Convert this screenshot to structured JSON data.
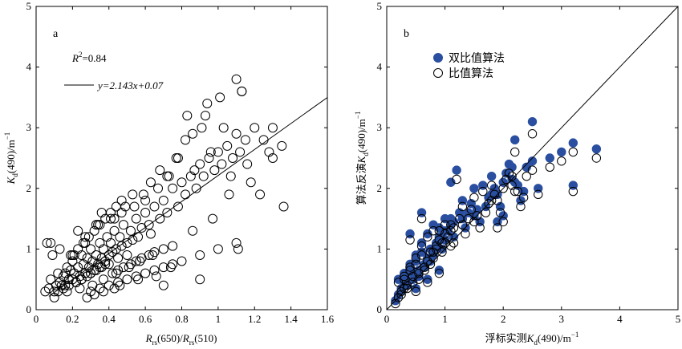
{
  "chart_data": [
    {
      "panel_label": "a",
      "type": "scatter",
      "xlabel_main": "R",
      "xlabel_sub": "rs",
      "xlabel_mid": "(650)/",
      "xlabel_main2": "R",
      "xlabel_sub2": "rs",
      "xlabel_tail": "(510)",
      "ylabel_main": "K",
      "ylabel_sub": "d",
      "ylabel_tail": "(490)/m",
      "ylabel_sup": "−1",
      "xlim": [
        0,
        1.6
      ],
      "ylim": [
        0,
        5
      ],
      "xticks": [
        0,
        0.2,
        0.4,
        0.6,
        0.8,
        1.0,
        1.2,
        1.4,
        1.6
      ],
      "xtick_labels": [
        "0",
        "0.2",
        "0.4",
        "0.6",
        "0.8",
        "1",
        "1.2",
        "1.4",
        "1.6"
      ],
      "yticks": [
        0,
        1,
        2,
        3,
        4,
        5
      ],
      "ytick_labels": [
        "0",
        "1",
        "2",
        "3",
        "4",
        "5"
      ],
      "r2_label": "R",
      "r2_sup": "2",
      "r2_value": "=0.84",
      "fit_label": "y=2.143x+0.07",
      "fit": {
        "slope": 2.143,
        "intercept": 0.07,
        "x_range": [
          0.07,
          1.6
        ]
      },
      "marker": "open-circle",
      "x": [
        0.07,
        0.08,
        0.1,
        0.12,
        0.13,
        0.15,
        0.16,
        0.17,
        0.18,
        0.19,
        0.2,
        0.2,
        0.21,
        0.22,
        0.23,
        0.24,
        0.25,
        0.25,
        0.26,
        0.27,
        0.28,
        0.29,
        0.3,
        0.3,
        0.31,
        0.32,
        0.33,
        0.34,
        0.35,
        0.35,
        0.36,
        0.37,
        0.38,
        0.39,
        0.4,
        0.4,
        0.41,
        0.42,
        0.43,
        0.44,
        0.45,
        0.46,
        0.47,
        0.48,
        0.5,
        0.5,
        0.52,
        0.53,
        0.55,
        0.56,
        0.58,
        0.6,
        0.62,
        0.63,
        0.65,
        0.68,
        0.7,
        0.72,
        0.75,
        0.78,
        0.8,
        0.82,
        0.85,
        0.88,
        0.9,
        0.92,
        0.95,
        0.98,
        1.0,
        1.02,
        1.05,
        1.08,
        1.1,
        1.12,
        1.15,
        1.2,
        1.25,
        1.28,
        1.3,
        1.35,
        0.12,
        0.15,
        0.18,
        0.22,
        0.25,
        0.28,
        0.3,
        0.33,
        0.36,
        0.38,
        0.42,
        0.45,
        0.48,
        0.52,
        0.55,
        0.58,
        0.62,
        0.65,
        0.7,
        0.75,
        0.08,
        0.1,
        0.14,
        0.17,
        0.21,
        0.24,
        0.27,
        0.31,
        0.34,
        0.37,
        0.41,
        0.44,
        0.47,
        0.51,
        0.54,
        0.57,
        0.6,
        0.64,
        0.67,
        0.72,
        0.77,
        0.82,
        0.86,
        0.93,
        0.97,
        1.03,
        1.07,
        1.13,
        1.18,
        1.23,
        0.2,
        0.23,
        0.26,
        0.29,
        0.32,
        0.35,
        0.38,
        0.41,
        0.44,
        0.47,
        0.3,
        0.35,
        0.4,
        0.45,
        0.5,
        0.55,
        0.6,
        0.65,
        0.7,
        0.75,
        0.8,
        0.9,
        1.0,
        1.1,
        0.05,
        0.06,
        0.09,
        0.11,
        0.13,
        0.16,
        0.19,
        0.23,
        0.27,
        0.33,
        0.36,
        0.43,
        0.49,
        0.53,
        0.59,
        0.63,
        0.68,
        0.73,
        0.78,
        0.83,
        0.87,
        0.91,
        0.96,
        1.01,
        1.06,
        1.11,
        1.16,
        0.28,
        0.32,
        0.37,
        0.43,
        0.46,
        0.56,
        0.66,
        0.74,
        0.86,
        0.94,
        1.1,
        1.13,
        1.36,
        1.3,
        0.9,
        0.7
      ],
      "y": [
        0.35,
        0.5,
        0.3,
        0.6,
        0.45,
        0.55,
        0.4,
        0.7,
        0.5,
        0.65,
        0.5,
        0.8,
        0.6,
        0.45,
        0.7,
        0.55,
        0.9,
        0.5,
        0.75,
        0.6,
        0.85,
        0.7,
        0.6,
        1.0,
        0.8,
        0.65,
        0.9,
        0.75,
        1.1,
        0.7,
        0.85,
        1.0,
        0.8,
        1.2,
        0.9,
        0.75,
        1.1,
        0.95,
        1.3,
        1.0,
        0.85,
        1.2,
        1.05,
        1.4,
        1.1,
        0.9,
        1.3,
        1.15,
        1.5,
        1.2,
        1.35,
        1.6,
        1.4,
        1.25,
        1.7,
        1.5,
        1.8,
        1.6,
        2.0,
        1.7,
        2.1,
        1.9,
        2.2,
        2.0,
        2.4,
        2.2,
        2.5,
        2.3,
        2.6,
        2.4,
        2.7,
        2.5,
        2.9,
        2.6,
        2.8,
        3.0,
        2.8,
        2.6,
        2.5,
        2.7,
        0.3,
        0.35,
        0.4,
        0.45,
        0.5,
        0.55,
        0.6,
        0.65,
        0.7,
        0.75,
        0.6,
        0.65,
        0.7,
        0.75,
        0.8,
        0.85,
        0.9,
        0.95,
        1.0,
        1.05,
        1.1,
        0.2,
        0.4,
        0.3,
        0.9,
        0.35,
        1.2,
        0.4,
        1.4,
        0.5,
        1.5,
        0.6,
        1.6,
        0.7,
        1.7,
        0.8,
        1.8,
        0.9,
        2.0,
        2.2,
        2.5,
        2.8,
        1.3,
        3.2,
        1.5,
        3.0,
        2.2,
        3.6,
        2.1,
        1.9,
        0.9,
        1.0,
        1.1,
        1.2,
        1.3,
        1.4,
        1.5,
        1.6,
        1.7,
        1.8,
        0.3,
        0.35,
        0.4,
        0.45,
        0.5,
        0.55,
        0.6,
        0.65,
        0.7,
        0.75,
        0.8,
        0.9,
        1.0,
        1.1,
        0.3,
        1.1,
        0.9,
        0.4,
        1.0,
        0.6,
        0.9,
        1.3,
        1.1,
        1.4,
        1.6,
        1.5,
        1.7,
        1.9,
        1.9,
        2.1,
        2.3,
        2.2,
        2.5,
        3.2,
        2.3,
        3.0,
        2.6,
        3.5,
        1.9,
        1.0,
        2.4,
        0.2,
        0.25,
        0.3,
        0.35,
        0.4,
        0.5,
        0.55,
        0.7,
        2.9,
        3.4,
        3.8,
        3.6,
        1.7,
        3.0,
        0.5,
        0.4
      ]
    },
    {
      "panel_label": "b",
      "type": "scatter",
      "xlabel": "浮标实测",
      "xlabel_main": "K",
      "xlabel_sub": "d",
      "xlabel_tail": "(490)/m",
      "xlabel_sup": "−1",
      "ylabel": "算法反演",
      "ylabel_main": "K",
      "ylabel_sub": "d",
      "ylabel_tail": "(490)/m",
      "ylabel_sup": "−1",
      "xlim": [
        0,
        5
      ],
      "ylim": [
        0,
        5
      ],
      "xticks": [
        0,
        1,
        2,
        3,
        4,
        5
      ],
      "xtick_labels": [
        "0",
        "1",
        "2",
        "3",
        "4",
        "5"
      ],
      "yticks": [
        0,
        1,
        2,
        3,
        4,
        5
      ],
      "ytick_labels": [
        "0",
        "1",
        "2",
        "3",
        "4",
        "5"
      ],
      "reference_line": "1:1",
      "legend_position": "top-left",
      "series": [
        {
          "name": "双比值算法",
          "marker": "filled-circle",
          "color": "#2a4fa0",
          "x": [
            0.15,
            0.2,
            0.25,
            0.3,
            0.35,
            0.4,
            0.45,
            0.5,
            0.55,
            0.6,
            0.65,
            0.7,
            0.75,
            0.8,
            0.85,
            0.9,
            0.95,
            1.0,
            1.1,
            1.2,
            1.3,
            1.4,
            1.5,
            1.6,
            1.7,
            1.8,
            1.9,
            2.0,
            2.1,
            2.2,
            2.3,
            2.4,
            2.5,
            2.6,
            2.8,
            3.0,
            3.2,
            3.6,
            0.3,
            0.4,
            0.5,
            0.6,
            0.7,
            0.8,
            0.9,
            1.0,
            1.1,
            1.25,
            1.35,
            1.45,
            1.55,
            1.65,
            1.75,
            1.85,
            1.95,
            2.05,
            2.15,
            2.25,
            2.35,
            0.25,
            0.35,
            0.45,
            0.55,
            0.65,
            0.75,
            0.85,
            0.95,
            1.05,
            1.15,
            0.2,
            0.3,
            0.4,
            0.5,
            0.6,
            0.7,
            0.8,
            0.9,
            1.0,
            1.15,
            1.3,
            1.5,
            1.8,
            2.0,
            2.2,
            2.5,
            3.2,
            1.1,
            1.9,
            2.15
          ],
          "y": [
            0.15,
            0.5,
            0.3,
            0.55,
            0.45,
            0.7,
            0.6,
            0.8,
            0.55,
            0.95,
            0.7,
            0.85,
            1.0,
            0.9,
            1.1,
            1.2,
            1.0,
            1.3,
            1.4,
            2.3,
            1.5,
            1.6,
            2.0,
            1.45,
            1.7,
            2.2,
            1.9,
            1.55,
            2.4,
            2.1,
            1.8,
            2.35,
            3.1,
            2.0,
            2.5,
            2.6,
            2.75,
            2.65,
            0.6,
            0.75,
            0.9,
            1.1,
            1.25,
            1.0,
            1.35,
            1.15,
            1.5,
            1.6,
            1.35,
            1.75,
            1.65,
            2.05,
            1.85,
            2.0,
            1.7,
            2.25,
            2.15,
            2.05,
            1.95,
            0.35,
            0.4,
            0.5,
            0.65,
            0.75,
            0.8,
            1.05,
            1.2,
            1.3,
            1.45,
            0.25,
            0.4,
            1.25,
            0.35,
            1.6,
            0.5,
            1.4,
            0.65,
            1.5,
            1.2,
            1.8,
            1.55,
            1.9,
            2.1,
            2.8,
            2.45,
            2.05,
            2.1,
            1.45,
            2.35
          ]
        },
        {
          "name": "比值算法",
          "marker": "open-circle",
          "color": "#000000",
          "x": [
            0.15,
            0.2,
            0.25,
            0.3,
            0.35,
            0.4,
            0.45,
            0.5,
            0.55,
            0.6,
            0.65,
            0.7,
            0.75,
            0.8,
            0.85,
            0.9,
            0.95,
            1.0,
            1.1,
            1.2,
            1.3,
            1.4,
            1.5,
            1.6,
            1.7,
            1.8,
            1.9,
            2.0,
            2.1,
            2.2,
            2.3,
            2.4,
            2.5,
            2.6,
            2.8,
            3.0,
            3.2,
            3.6,
            0.3,
            0.4,
            0.5,
            0.6,
            0.7,
            0.8,
            0.9,
            1.0,
            1.1,
            1.25,
            1.35,
            1.45,
            1.55,
            1.65,
            1.75,
            1.85,
            1.95,
            2.05,
            2.15,
            2.25,
            2.35,
            0.25,
            0.35,
            0.45,
            0.55,
            0.65,
            0.75,
            0.85,
            0.95,
            1.05,
            1.15,
            0.2,
            0.3,
            0.4,
            0.5,
            0.6,
            0.7,
            0.8,
            0.9,
            1.0,
            1.15,
            1.3,
            1.5,
            1.8,
            2.0,
            2.2,
            2.5,
            3.2,
            1.1,
            1.9,
            2.15
          ],
          "y": [
            0.1,
            0.45,
            0.25,
            0.5,
            0.4,
            0.65,
            0.55,
            0.75,
            0.5,
            0.9,
            0.65,
            0.8,
            0.95,
            0.85,
            1.05,
            1.15,
            0.95,
            1.25,
            1.3,
            2.15,
            1.4,
            1.5,
            1.85,
            1.35,
            1.6,
            2.05,
            1.8,
            1.45,
            2.25,
            1.95,
            1.7,
            2.2,
            2.9,
            1.9,
            2.35,
            2.45,
            2.6,
            2.5,
            0.55,
            0.7,
            0.85,
            1.05,
            1.2,
            0.95,
            1.3,
            1.1,
            1.4,
            1.5,
            1.25,
            1.65,
            1.55,
            1.95,
            1.75,
            1.9,
            1.6,
            2.15,
            2.05,
            1.95,
            1.85,
            0.3,
            0.35,
            0.45,
            0.6,
            0.7,
            0.75,
            1.0,
            1.1,
            1.2,
            1.35,
            0.2,
            0.35,
            1.15,
            0.3,
            1.5,
            0.45,
            1.3,
            0.6,
            1.4,
            1.1,
            1.7,
            1.45,
            1.8,
            2.0,
            2.6,
            2.3,
            1.95,
            1.05,
            1.35,
            2.2
          ]
        }
      ]
    }
  ]
}
